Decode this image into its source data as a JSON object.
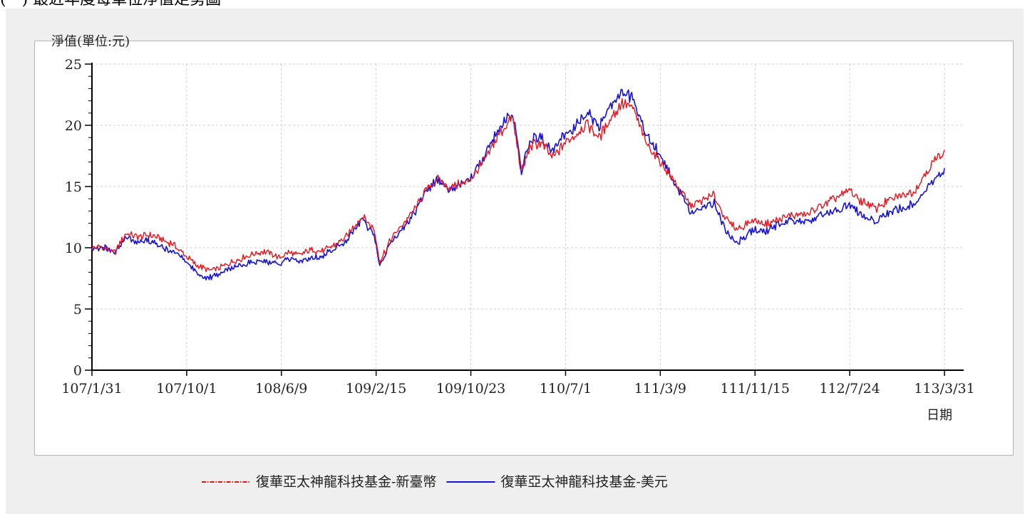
{
  "heading": "(一) 最近年度每單位淨值走勢圖",
  "chart_data": {
    "type": "line",
    "ylabel": "淨值(單位:元)",
    "xlabel": "日期",
    "ylim": [
      0,
      25
    ],
    "yticks": [
      0,
      5,
      10,
      15,
      20,
      25
    ],
    "x_tick_labels": [
      "107/1/31",
      "107/10/1",
      "108/6/9",
      "109/2/15",
      "109/10/23",
      "110/7/1",
      "111/3/9",
      "111/11/15",
      "112/7/24",
      "113/3/31"
    ],
    "grid": true,
    "legend_placement": "bottom-center",
    "series": [
      {
        "name": "復華亞太神龍科技基金-新臺幣",
        "color": "#e8121b",
        "style": "dash-dot",
        "points": [
          [
            "107/1/31",
            10.0
          ],
          [
            "107/3/1",
            10.05
          ],
          [
            "107/4/1",
            9.6
          ],
          [
            "107/5/1",
            11.2
          ],
          [
            "107/6/1",
            10.9
          ],
          [
            "107/7/1",
            11.1
          ],
          [
            "107/8/1",
            10.7
          ],
          [
            "107/9/1",
            10.3
          ],
          [
            "107/10/1",
            9.5
          ],
          [
            "107/11/1",
            8.6
          ],
          [
            "107/12/1",
            8.2
          ],
          [
            "108/1/1",
            8.3
          ],
          [
            "108/2/1",
            8.8
          ],
          [
            "108/3/1",
            9.1
          ],
          [
            "108/4/1",
            9.5
          ],
          [
            "108/5/1",
            9.7
          ],
          [
            "108/6/9",
            9.2
          ],
          [
            "108/7/1",
            9.6
          ],
          [
            "108/8/1",
            9.4
          ],
          [
            "108/9/1",
            9.8
          ],
          [
            "108/10/1",
            9.7
          ],
          [
            "108/11/1",
            10.2
          ],
          [
            "108/12/1",
            10.8
          ],
          [
            "109/1/15",
            12.6
          ],
          [
            "109/2/15",
            11.5
          ],
          [
            "109/3/1",
            8.9
          ],
          [
            "109/4/1",
            10.8
          ],
          [
            "109/5/1",
            11.9
          ],
          [
            "109/6/1",
            13.2
          ],
          [
            "109/7/1",
            14.7
          ],
          [
            "109/8/1",
            15.6
          ],
          [
            "109/9/1",
            14.9
          ],
          [
            "109/10/23",
            15.4
          ],
          [
            "109/12/1",
            17.1
          ],
          [
            "110/1/15",
            19.5
          ],
          [
            "110/2/15",
            20.6
          ],
          [
            "110/3/10",
            16.1
          ],
          [
            "110/4/1",
            18.3
          ],
          [
            "110/5/1",
            18.6
          ],
          [
            "110/6/1",
            17.3
          ],
          [
            "110/7/1",
            18.5
          ],
          [
            "110/8/1",
            19.3
          ],
          [
            "110/9/1",
            20.1
          ],
          [
            "110/10/1",
            19.0
          ],
          [
            "110/11/1",
            20.6
          ],
          [
            "110/12/1",
            21.8
          ],
          [
            "111/1/1",
            21.3
          ],
          [
            "111/2/1",
            18.6
          ],
          [
            "111/3/9",
            17.1
          ],
          [
            "111/4/1",
            16.2
          ],
          [
            "111/5/1",
            14.8
          ],
          [
            "111/6/1",
            13.4
          ],
          [
            "111/7/1",
            13.9
          ],
          [
            "111/8/1",
            14.3
          ],
          [
            "111/9/1",
            12.3
          ],
          [
            "111/10/1",
            11.5
          ],
          [
            "111/11/15",
            12.3
          ],
          [
            "111/12/15",
            11.9
          ],
          [
            "112/1/15",
            12.3
          ],
          [
            "112/2/15",
            12.6
          ],
          [
            "112/4/1",
            12.7
          ],
          [
            "112/5/15",
            13.5
          ],
          [
            "112/7/24",
            14.7
          ],
          [
            "112/8/15",
            14.0
          ],
          [
            "112/10/1",
            13.2
          ],
          [
            "112/11/1",
            13.8
          ],
          [
            "112/12/15",
            14.3
          ],
          [
            "113/1/15",
            14.7
          ],
          [
            "113/2/15",
            16.4
          ],
          [
            "113/3/31",
            18.0
          ]
        ]
      },
      {
        "name": "復華亞太神龍科技基金-美元",
        "color": "#1512d6",
        "style": "solid",
        "points": [
          [
            "107/1/31",
            10.0
          ],
          [
            "107/3/1",
            10.1
          ],
          [
            "107/4/1",
            9.5
          ],
          [
            "107/5/1",
            10.8
          ],
          [
            "107/6/1",
            10.5
          ],
          [
            "107/7/1",
            10.6
          ],
          [
            "107/8/1",
            10.0
          ],
          [
            "107/9/1",
            9.8
          ],
          [
            "107/10/1",
            9.1
          ],
          [
            "107/11/1",
            8.0
          ],
          [
            "107/12/1",
            7.5
          ],
          [
            "108/1/1",
            7.8
          ],
          [
            "108/2/1",
            8.3
          ],
          [
            "108/3/1",
            8.6
          ],
          [
            "108/4/1",
            8.9
          ],
          [
            "108/5/1",
            8.9
          ],
          [
            "108/6/9",
            8.6
          ],
          [
            "108/7/1",
            9.0
          ],
          [
            "108/8/1",
            8.9
          ],
          [
            "108/9/1",
            9.2
          ],
          [
            "108/10/1",
            9.3
          ],
          [
            "108/11/1",
            9.9
          ],
          [
            "108/12/1",
            10.5
          ],
          [
            "109/1/15",
            12.3
          ],
          [
            "109/2/15",
            11.1
          ],
          [
            "109/3/1",
            8.5
          ],
          [
            "109/4/1",
            10.5
          ],
          [
            "109/5/1",
            11.6
          ],
          [
            "109/6/1",
            12.9
          ],
          [
            "109/7/1",
            14.6
          ],
          [
            "109/8/1",
            15.5
          ],
          [
            "109/9/1",
            14.7
          ],
          [
            "109/10/23",
            15.4
          ],
          [
            "109/12/1",
            17.4
          ],
          [
            "110/1/15",
            20.1
          ],
          [
            "110/2/15",
            21.1
          ],
          [
            "110/3/10",
            16.3
          ],
          [
            "110/4/1",
            18.8
          ],
          [
            "110/5/1",
            19.1
          ],
          [
            "110/6/1",
            17.7
          ],
          [
            "110/7/1",
            19.2
          ],
          [
            "110/8/1",
            20.0
          ],
          [
            "110/9/1",
            21.0
          ],
          [
            "110/10/1",
            19.8
          ],
          [
            "110/11/1",
            21.8
          ],
          [
            "110/12/1",
            22.8
          ],
          [
            "111/1/1",
            22.1
          ],
          [
            "111/2/1",
            19.3
          ],
          [
            "111/3/9",
            17.6
          ],
          [
            "111/4/1",
            16.4
          ],
          [
            "111/5/1",
            14.6
          ],
          [
            "111/6/1",
            12.9
          ],
          [
            "111/7/1",
            13.3
          ],
          [
            "111/8/1",
            13.7
          ],
          [
            "111/9/1",
            11.4
          ],
          [
            "111/10/1",
            10.4
          ],
          [
            "111/11/15",
            11.6
          ],
          [
            "111/12/15",
            11.3
          ],
          [
            "112/1/15",
            11.9
          ],
          [
            "112/2/15",
            12.2
          ],
          [
            "112/4/1",
            12.0
          ],
          [
            "112/5/15",
            12.7
          ],
          [
            "112/7/24",
            13.5
          ],
          [
            "112/8/15",
            12.9
          ],
          [
            "112/10/1",
            12.1
          ],
          [
            "112/11/1",
            12.8
          ],
          [
            "112/12/15",
            13.3
          ],
          [
            "113/1/15",
            13.6
          ],
          [
            "113/2/15",
            15.1
          ],
          [
            "113/3/31",
            16.5
          ]
        ]
      }
    ]
  }
}
